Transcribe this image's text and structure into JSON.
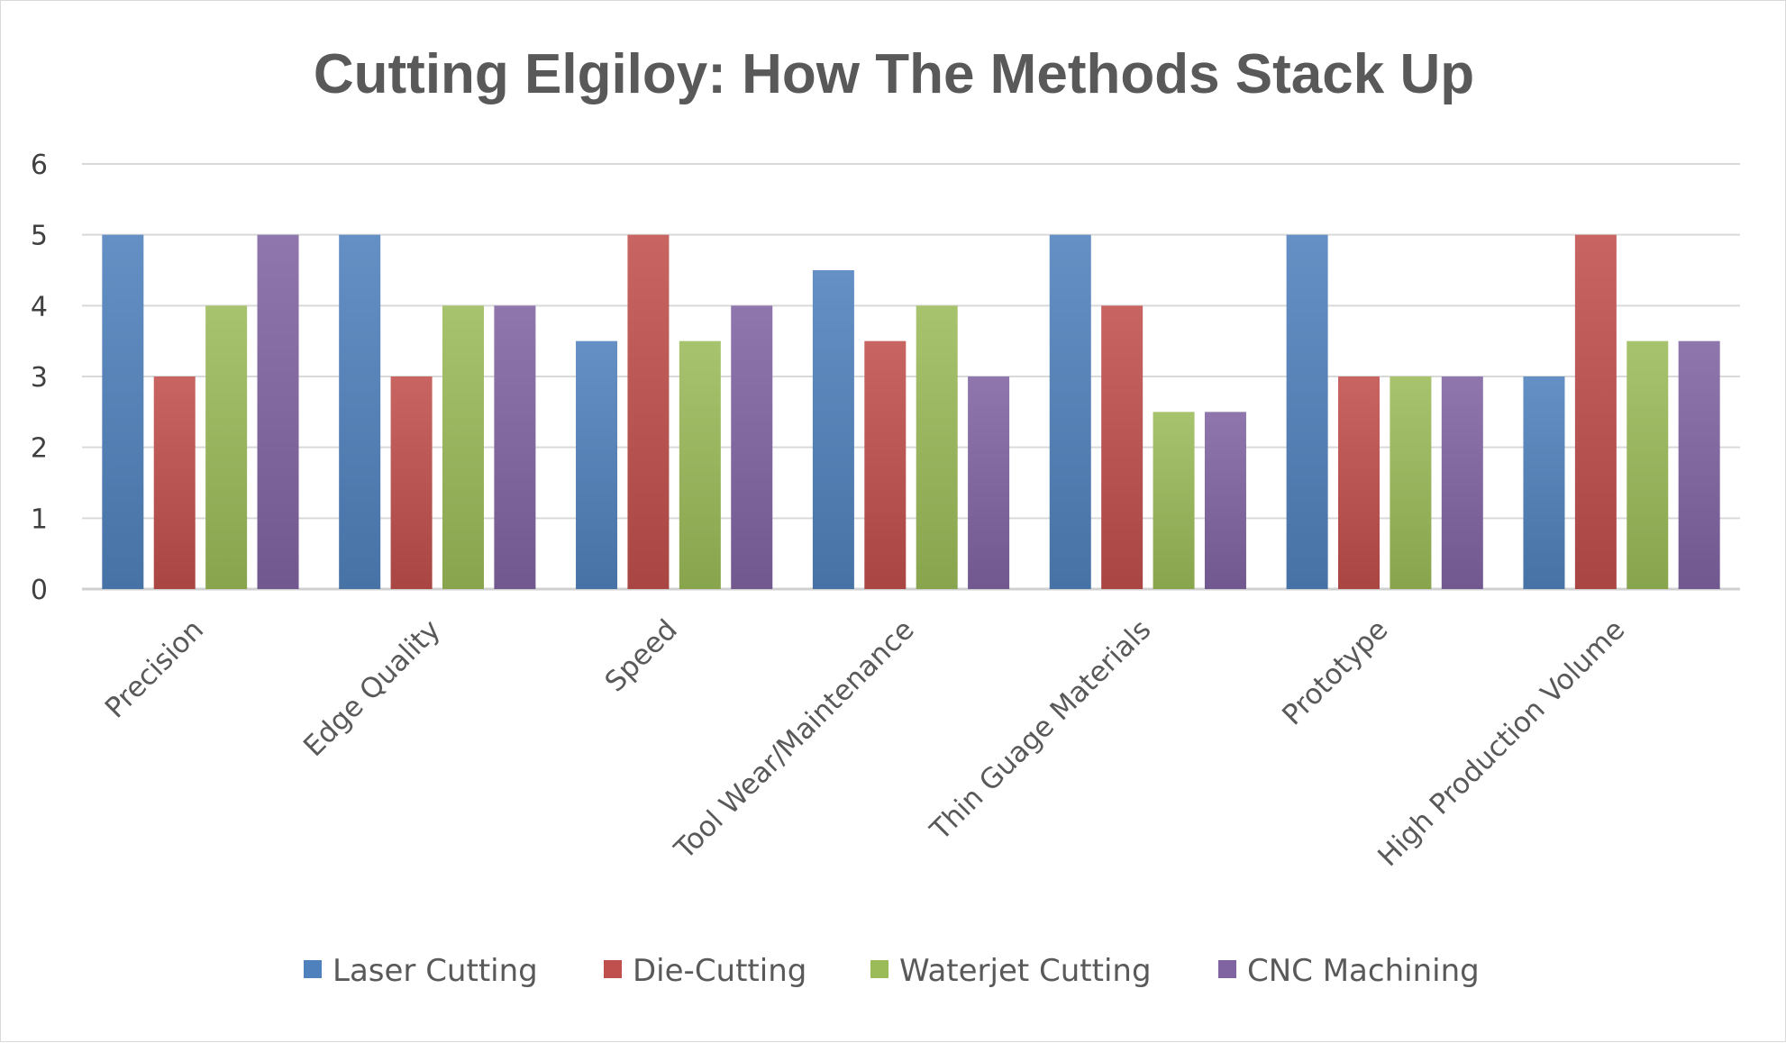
{
  "chart_data": {
    "type": "bar",
    "title": "Cutting Elgiloy: How The Methods Stack Up",
    "xlabel": "",
    "ylabel": "",
    "ylim": [
      0,
      6
    ],
    "yticks": [
      "0",
      "1",
      "2",
      "3",
      "4",
      "5",
      "6"
    ],
    "grid": true,
    "legend_position": "bottom",
    "categories": [
      "Precision",
      "Edge Quality",
      "Speed",
      "Tool Wear/Maintenance",
      "Thin Guage Materials",
      "Prototype",
      "High Production Volume"
    ],
    "series": [
      {
        "name": "Laser Cutting",
        "color": "#4f81bd",
        "values": [
          5,
          5,
          3.5,
          4.5,
          5,
          5,
          3
        ]
      },
      {
        "name": "Die-Cutting",
        "color": "#c0504d",
        "values": [
          3,
          3,
          5,
          3.5,
          4,
          3,
          5
        ]
      },
      {
        "name": "Waterjet Cutting",
        "color": "#9bbb59",
        "values": [
          4,
          4,
          3.5,
          4,
          2.5,
          3,
          3.5
        ]
      },
      {
        "name": "CNC Machining",
        "color": "#8064a2",
        "values": [
          5,
          4,
          4,
          3,
          2.5,
          3,
          3.5
        ]
      }
    ]
  }
}
